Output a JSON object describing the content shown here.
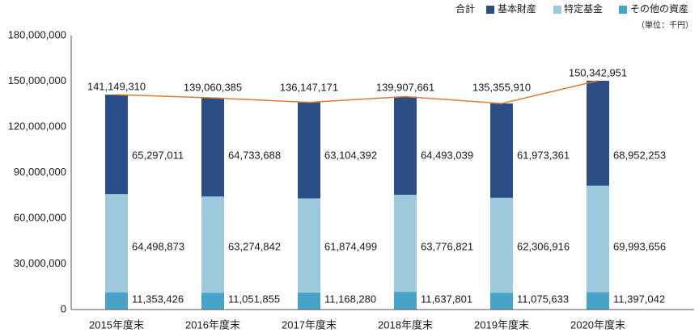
{
  "chart_data": {
    "type": "bar",
    "stacked": true,
    "categories": [
      "2015年度末",
      "2016年度末",
      "2017年度末",
      "2018年度末",
      "2019年度末",
      "2020年度末"
    ],
    "highlight_category": "2020年度末",
    "highlight_color": "#4a8ab6",
    "series": [
      {
        "name": "その他の資産",
        "color": "#47a3c7",
        "values": [
          11353426,
          11051855,
          11168280,
          11637801,
          11075633,
          11397042
        ]
      },
      {
        "name": "特定基金",
        "color": "#9dc9dd",
        "values": [
          64498873,
          63274842,
          61874499,
          63776821,
          62306916,
          69993656
        ]
      },
      {
        "name": "基本財産",
        "color": "#2b4e86",
        "values": [
          65297011,
          64733688,
          63104392,
          64493039,
          61973361,
          68952253
        ]
      }
    ],
    "total": {
      "name": "合計",
      "color": "#e8782c",
      "values": [
        141149310,
        139060385,
        136147171,
        139907661,
        135355910,
        150342951
      ]
    },
    "unit": "（単位：千円）",
    "ylim": [
      0,
      180000000
    ],
    "yticks": [
      0,
      30000000,
      60000000,
      90000000,
      120000000,
      150000000,
      180000000
    ],
    "grid": false,
    "legend": "top-right"
  }
}
